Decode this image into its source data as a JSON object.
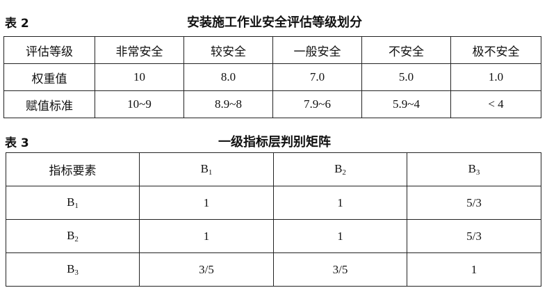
{
  "table2": {
    "label": "表 2",
    "title": "安装施工作业安全评估等级划分",
    "header": [
      "评估等级",
      "非常安全",
      "较安全",
      "一般安全",
      "不安全",
      "极不安全"
    ],
    "rows": [
      [
        "权重值",
        "10",
        "8.0",
        "7.0",
        "5.0",
        "1.0"
      ],
      [
        "赋值标准",
        "10~9",
        "8.9~8",
        "7.9~6",
        "5.9~4",
        "< 4"
      ]
    ]
  },
  "table3": {
    "label": "表 3",
    "title": "一级指标层判别矩阵",
    "header": [
      "指标要素",
      "B1",
      "B2",
      "B3"
    ],
    "rows": [
      [
        "B1",
        "1",
        "1",
        "5/3"
      ],
      [
        "B2",
        "1",
        "1",
        "5/3"
      ],
      [
        "B3",
        "3/5",
        "3/5",
        "1"
      ]
    ]
  }
}
